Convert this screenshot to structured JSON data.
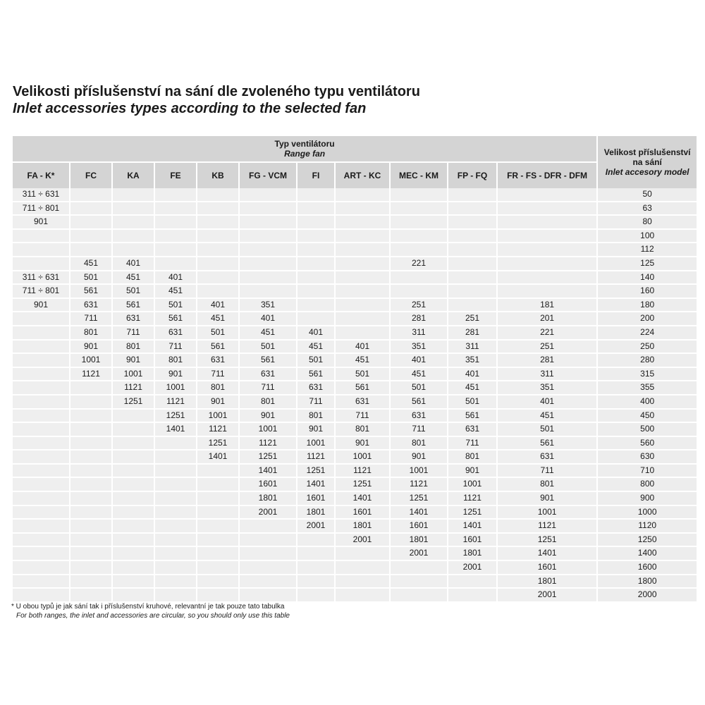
{
  "title": {
    "cz": "Velikosti příslušenství na sání dle zvoleného typu ventilátoru",
    "en": "Inlet accessories types according to the selected fan"
  },
  "table": {
    "range_header": {
      "cz": "Typ ventilátoru",
      "en": "Range fan"
    },
    "model_header": {
      "cz": "Velikost příslušenství na sání",
      "en": "Inlet accesory model"
    },
    "columns": [
      "FA - K*",
      "FC",
      "KA",
      "FE",
      "KB",
      "FG - VCM",
      "FI",
      "ART - KC",
      "MEC - KM",
      "FP - FQ",
      "FR - FS - DFR - DFM"
    ],
    "rows": [
      {
        "cells": [
          "311 ÷ 631",
          "",
          "",
          "",
          "",
          "",
          "",
          "",
          "",
          "",
          ""
        ],
        "model": "50"
      },
      {
        "cells": [
          "711 ÷ 801",
          "",
          "",
          "",
          "",
          "",
          "",
          "",
          "",
          "",
          ""
        ],
        "model": "63"
      },
      {
        "cells": [
          "901",
          "",
          "",
          "",
          "",
          "",
          "",
          "",
          "",
          "",
          ""
        ],
        "model": "80"
      },
      {
        "cells": [
          "",
          "",
          "",
          "",
          "",
          "",
          "",
          "",
          "",
          "",
          ""
        ],
        "model": "100"
      },
      {
        "cells": [
          "",
          "",
          "",
          "",
          "",
          "",
          "",
          "",
          "",
          "",
          ""
        ],
        "model": "112"
      },
      {
        "cells": [
          "",
          "451",
          "401",
          "",
          "",
          "",
          "",
          "",
          "221",
          "",
          ""
        ],
        "model": "125"
      },
      {
        "cells": [
          "311 ÷ 631",
          "501",
          "451",
          "401",
          "",
          "",
          "",
          "",
          "",
          "",
          ""
        ],
        "model": "140"
      },
      {
        "cells": [
          "711 ÷ 801",
          "561",
          "501",
          "451",
          "",
          "",
          "",
          "",
          "",
          "",
          ""
        ],
        "model": "160"
      },
      {
        "cells": [
          "901",
          "631",
          "561",
          "501",
          "401",
          "351",
          "",
          "",
          "251",
          "",
          "181"
        ],
        "model": "180"
      },
      {
        "cells": [
          "",
          "711",
          "631",
          "561",
          "451",
          "401",
          "",
          "",
          "281",
          "251",
          "201"
        ],
        "model": "200"
      },
      {
        "cells": [
          "",
          "801",
          "711",
          "631",
          "501",
          "451",
          "401",
          "",
          "311",
          "281",
          "221"
        ],
        "model": "224"
      },
      {
        "cells": [
          "",
          "901",
          "801",
          "711",
          "561",
          "501",
          "451",
          "401",
          "351",
          "311",
          "251"
        ],
        "model": "250"
      },
      {
        "cells": [
          "",
          "1001",
          "901",
          "801",
          "631",
          "561",
          "501",
          "451",
          "401",
          "351",
          "281"
        ],
        "model": "280"
      },
      {
        "cells": [
          "",
          "1121",
          "1001",
          "901",
          "711",
          "631",
          "561",
          "501",
          "451",
          "401",
          "311"
        ],
        "model": "315"
      },
      {
        "cells": [
          "",
          "",
          "1121",
          "1001",
          "801",
          "711",
          "631",
          "561",
          "501",
          "451",
          "351"
        ],
        "model": "355"
      },
      {
        "cells": [
          "",
          "",
          "1251",
          "1121",
          "901",
          "801",
          "711",
          "631",
          "561",
          "501",
          "401"
        ],
        "model": "400"
      },
      {
        "cells": [
          "",
          "",
          "",
          "1251",
          "1001",
          "901",
          "801",
          "711",
          "631",
          "561",
          "451"
        ],
        "model": "450"
      },
      {
        "cells": [
          "",
          "",
          "",
          "1401",
          "1121",
          "1001",
          "901",
          "801",
          "711",
          "631",
          "501"
        ],
        "model": "500"
      },
      {
        "cells": [
          "",
          "",
          "",
          "",
          "1251",
          "1121",
          "1001",
          "901",
          "801",
          "711",
          "561"
        ],
        "model": "560"
      },
      {
        "cells": [
          "",
          "",
          "",
          "",
          "1401",
          "1251",
          "1121",
          "1001",
          "901",
          "801",
          "631"
        ],
        "model": "630"
      },
      {
        "cells": [
          "",
          "",
          "",
          "",
          "",
          "1401",
          "1251",
          "1121",
          "1001",
          "901",
          "711"
        ],
        "model": "710"
      },
      {
        "cells": [
          "",
          "",
          "",
          "",
          "",
          "1601",
          "1401",
          "1251",
          "1121",
          "1001",
          "801"
        ],
        "model": "800"
      },
      {
        "cells": [
          "",
          "",
          "",
          "",
          "",
          "1801",
          "1601",
          "1401",
          "1251",
          "1121",
          "901"
        ],
        "model": "900"
      },
      {
        "cells": [
          "",
          "",
          "",
          "",
          "",
          "2001",
          "1801",
          "1601",
          "1401",
          "1251",
          "1001"
        ],
        "model": "1000"
      },
      {
        "cells": [
          "",
          "",
          "",
          "",
          "",
          "",
          "2001",
          "1801",
          "1601",
          "1401",
          "1121"
        ],
        "model": "1120"
      },
      {
        "cells": [
          "",
          "",
          "",
          "",
          "",
          "",
          "",
          "2001",
          "1801",
          "1601",
          "1251"
        ],
        "model": "1250"
      },
      {
        "cells": [
          "",
          "",
          "",
          "",
          "",
          "",
          "",
          "",
          "2001",
          "1801",
          "1401"
        ],
        "model": "1400"
      },
      {
        "cells": [
          "",
          "",
          "",
          "",
          "",
          "",
          "",
          "",
          "",
          "2001",
          "1601"
        ],
        "model": "1600"
      },
      {
        "cells": [
          "",
          "",
          "",
          "",
          "",
          "",
          "",
          "",
          "",
          "",
          "1801"
        ],
        "model": "1800"
      },
      {
        "cells": [
          "",
          "",
          "",
          "",
          "",
          "",
          "",
          "",
          "",
          "",
          "2001"
        ],
        "model": "2000"
      }
    ]
  },
  "footnote": {
    "cz": "* U obou typů je jak sání tak i příslušenství kruhové, relevantní je tak pouze tato tabulka",
    "en": "For both ranges, the inlet and accessories are circular, so you should only use this table"
  },
  "colors": {
    "header_bg": "#d4d4d4",
    "cell_bg": "#efefef",
    "text": "#1a1a1a"
  }
}
